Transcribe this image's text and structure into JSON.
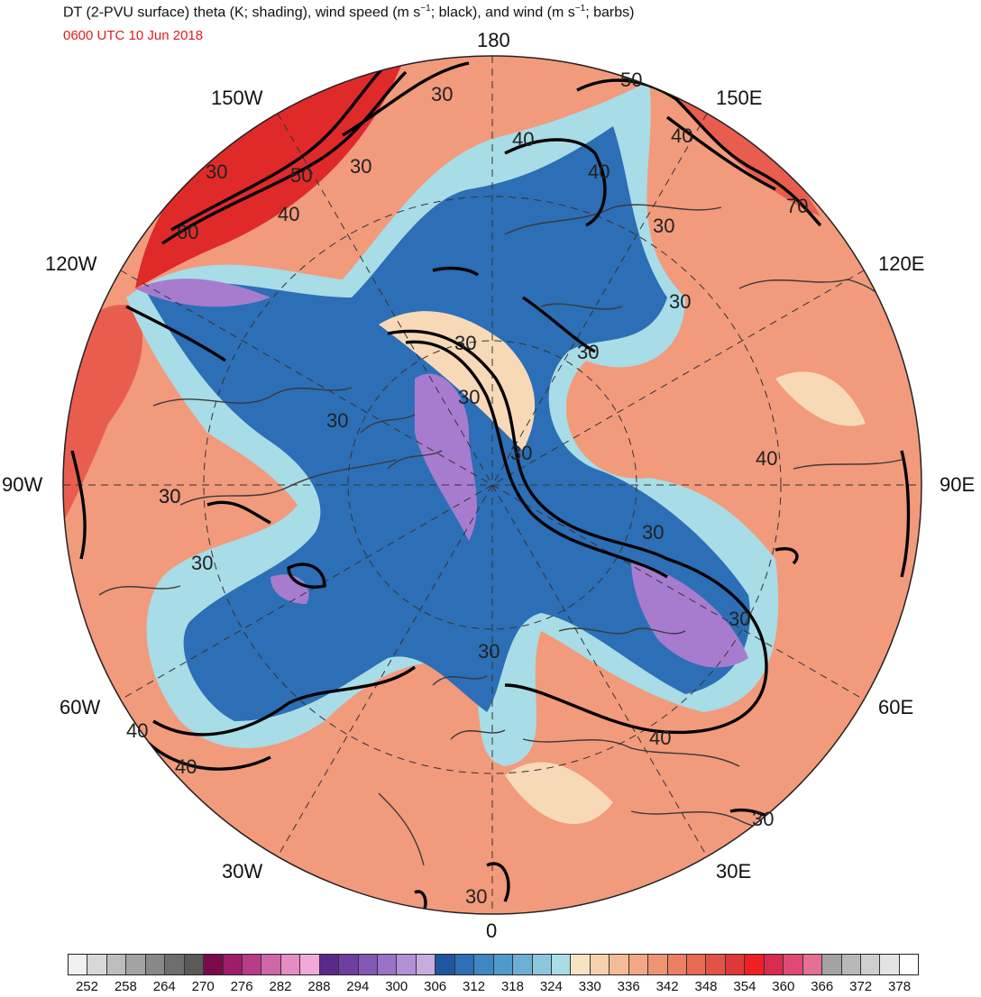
{
  "header": {
    "title_prefix": "DT (2-PVU surface) theta (K; shading), wind speed (m s",
    "title_sup1": "−1",
    "title_mid": "; black), and wind (m s",
    "title_sup2": "−1",
    "title_suffix": "; barbs)",
    "valid_time": "0600 UTC 10 Jun 2018"
  },
  "map": {
    "projection": "north-polar-stereographic",
    "longitude_labels": {
      "top": "180",
      "bottom": "0",
      "left": "90W",
      "right": "90E",
      "upper_left_1": "150W",
      "upper_left_2": "120W",
      "upper_right_1": "150E",
      "upper_right_2": "120E",
      "lower_left_1": "60W",
      "lower_left_2": "30W",
      "lower_right_1": "60E",
      "lower_right_2": "30E"
    },
    "contour_labels": [
      "30",
      "40",
      "30",
      "50",
      "60",
      "40",
      "30",
      "40",
      "50",
      "40",
      "70",
      "30",
      "30",
      "30",
      "30",
      "30",
      "30",
      "40",
      "30",
      "30",
      "30",
      "30",
      "30",
      "40",
      "30",
      "30",
      "40",
      "40",
      "30",
      "30"
    ],
    "colors": {
      "warm": "#f29a7c",
      "warm_dark": "#e95d4f",
      "red": "#e02a2a",
      "magenta": "#d83f6a",
      "cool_light": "#a8dce6",
      "cool": "#5fa9d3",
      "blue": "#2c6fb6",
      "blue_dark": "#1f56a0",
      "purple": "#a77ccf",
      "sand": "#f7d9b8",
      "contour": "#000000",
      "coast": "#3a3a3a"
    }
  },
  "colorbar": {
    "labels": [
      "252",
      "258",
      "264",
      "270",
      "276",
      "282",
      "288",
      "294",
      "300",
      "306",
      "312",
      "318",
      "324",
      "330",
      "336",
      "342",
      "348",
      "354",
      "360",
      "366",
      "372",
      "378"
    ],
    "colors": [
      "#f0f0f0",
      "#d8d8d8",
      "#bdbdbd",
      "#a3a3a3",
      "#888888",
      "#6e6e6e",
      "#5a5a5a",
      "#7a0a4c",
      "#9c1e6a",
      "#b83c8a",
      "#cf66a8",
      "#e58cc4",
      "#f1aad8",
      "#5a2a8a",
      "#6e3fa0",
      "#8357b6",
      "#9a72c8",
      "#b28fd6",
      "#c8acdf",
      "#1f56a0",
      "#2c6fb6",
      "#3f86c4",
      "#4e9bcb",
      "#6bb0d4",
      "#8cc6dd",
      "#a8dce6",
      "#f7e2c4",
      "#f7d0ad",
      "#f4bc96",
      "#f2a885",
      "#ef9473",
      "#ec7f62",
      "#e86a53",
      "#e35345",
      "#e0383a",
      "#ef1f24",
      "#d92b4f",
      "#df4a74",
      "#e56f92",
      "#a3a3a3",
      "#b8b8b8",
      "#cfcfcf",
      "#e3e3e3",
      "#ffffff"
    ]
  }
}
